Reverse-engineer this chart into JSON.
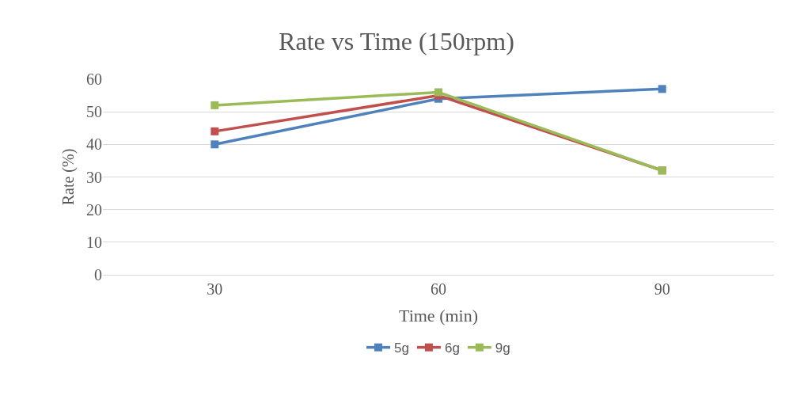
{
  "chart_data": {
    "type": "line",
    "title": "Rate vs Time (150rpm)",
    "xlabel": "Time (min)",
    "ylabel": "Rate (%)",
    "categories": [
      "30",
      "60",
      "90"
    ],
    "series": [
      {
        "name": "5g",
        "color": "#4f81bd",
        "values": [
          40,
          54,
          57
        ]
      },
      {
        "name": "6g",
        "color": "#c0504d",
        "values": [
          44,
          55,
          32
        ]
      },
      {
        "name": "9g",
        "color": "#9bbb59",
        "values": [
          52,
          56,
          32
        ]
      }
    ],
    "ylim": [
      0,
      60
    ],
    "yticks": [
      0,
      10,
      20,
      30,
      40,
      50,
      60
    ],
    "grid": "y",
    "legend": "bottom",
    "marker": "square",
    "line_style": "solid"
  }
}
